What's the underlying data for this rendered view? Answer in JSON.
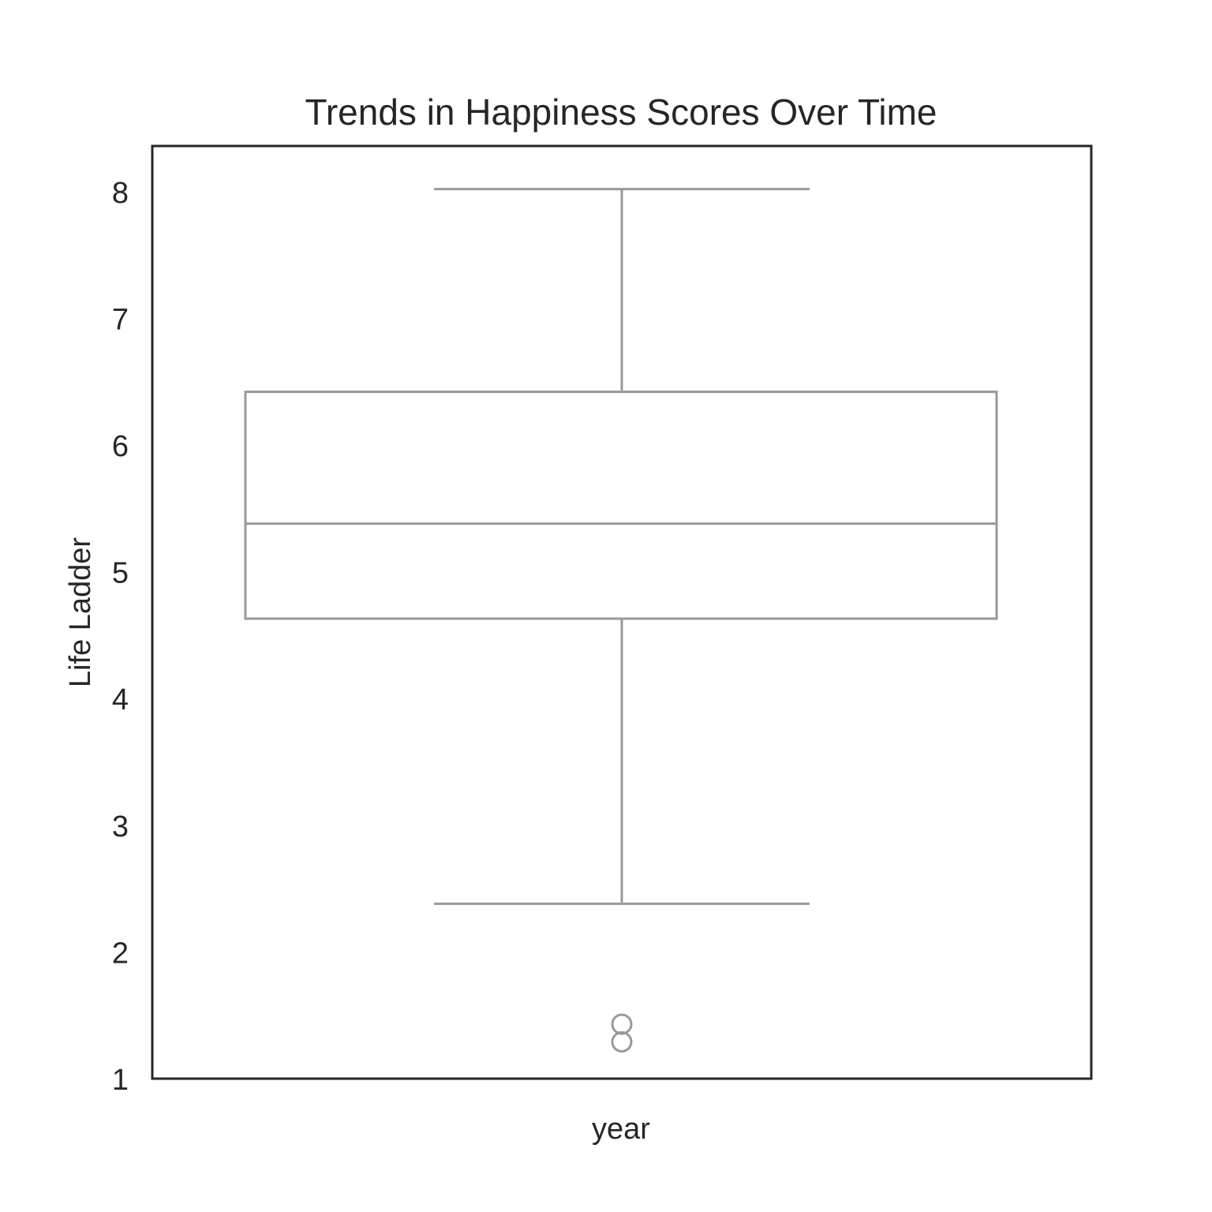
{
  "chart_data": {
    "type": "box",
    "title": "Trends in Happiness Scores Over Time",
    "xlabel": "year",
    "ylabel": "Life Ladder",
    "ylim": [
      1,
      8.36
    ],
    "yticks": [
      1,
      2,
      3,
      4,
      5,
      6,
      7,
      8
    ],
    "box": {
      "whisker_low": 2.38,
      "q1": 4.63,
      "median": 5.38,
      "q3": 6.42,
      "whisker_high": 8.02,
      "outliers": [
        1.29,
        1.43
      ]
    },
    "grid": false,
    "colors": {
      "box_line": "#999999",
      "frame": "#262626",
      "text": "#262626"
    }
  }
}
